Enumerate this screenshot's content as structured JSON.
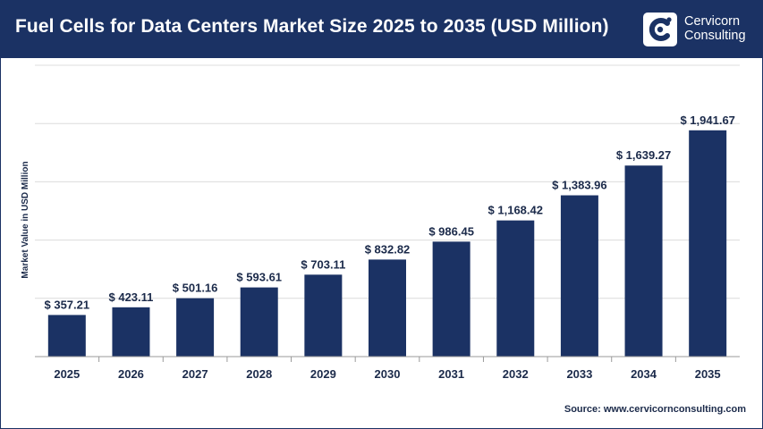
{
  "header": {
    "title": "Fuel Cells for Data Centers Market Size 2025 to 2035 (USD Million)",
    "logo": {
      "line1": "Cervicorn",
      "line2": "Consulting",
      "icon": "cervicorn-logo-icon"
    }
  },
  "colors": {
    "header_bg": "#1b3264",
    "bar": "#1b3264",
    "label": "#1b2a4a",
    "grid": "#dcdcdc"
  },
  "chart_data": {
    "type": "bar",
    "ylabel": "Market Value in USD Million",
    "xlabel": "",
    "categories": [
      "2025",
      "2026",
      "2027",
      "2028",
      "2029",
      "2030",
      "2031",
      "2032",
      "2033",
      "2034",
      "2035"
    ],
    "values": [
      357.21,
      423.11,
      501.16,
      593.61,
      703.11,
      832.82,
      986.45,
      1168.42,
      1383.96,
      1639.27,
      1941.67
    ],
    "value_labels": [
      "$ 357.21",
      "$ 423.11",
      "$ 501.16",
      "$ 593.61",
      "$ 703.11",
      "$ 832.82",
      "$ 986.45",
      "$ 1,168.42",
      "$ 1,383.96",
      "$ 1,639.27",
      "$ 1,941.67"
    ],
    "ylim": [
      0,
      2500
    ],
    "grid": true,
    "legend": "none"
  },
  "footer": {
    "source": "Source: www.cervicornconsulting.com"
  }
}
